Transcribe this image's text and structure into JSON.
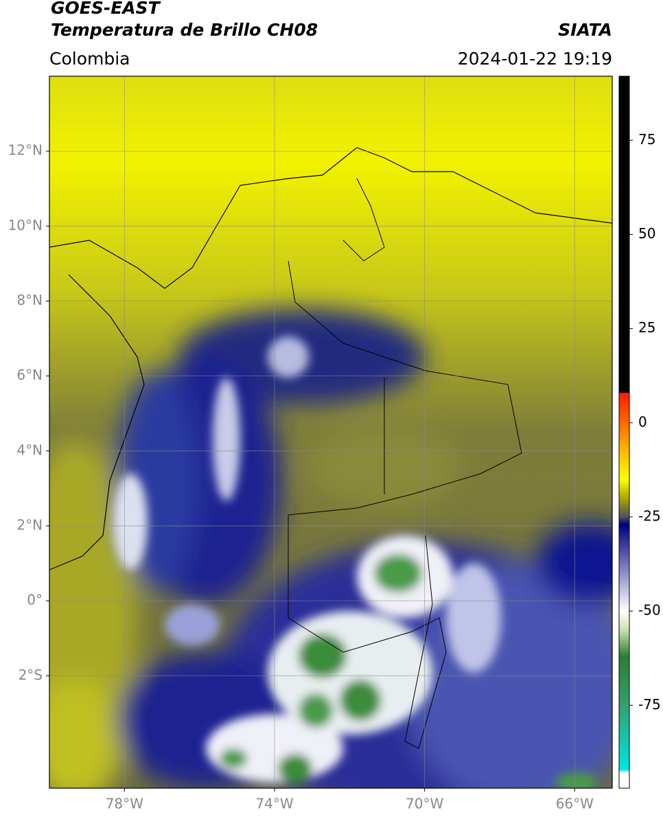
{
  "header": {
    "title_line1": "GOES-EAST",
    "title_line2": "Temperatura de Brillo CH08",
    "subtitle": "Colombia",
    "source": "SIATA",
    "datetime": "2024-01-22 19:19"
  },
  "chart_data": {
    "type": "map",
    "xlim": [
      -80,
      -65
    ],
    "ylim": [
      -5,
      14
    ],
    "xticks": [
      {
        "value": -78,
        "label": "78°W"
      },
      {
        "value": -74,
        "label": "74°W"
      },
      {
        "value": -70,
        "label": "70°W"
      },
      {
        "value": -66,
        "label": "66°W"
      }
    ],
    "yticks": [
      {
        "value": 12,
        "label": "12°N"
      },
      {
        "value": 10,
        "label": "10°N"
      },
      {
        "value": 8,
        "label": "8°N"
      },
      {
        "value": 6,
        "label": "6°N"
      },
      {
        "value": 4,
        "label": "4°N"
      },
      {
        "value": 2,
        "label": "2°N"
      },
      {
        "value": 0,
        "label": "0°"
      },
      {
        "value": -2,
        "label": "2°S"
      }
    ],
    "grid": true,
    "colorbar": {
      "lim": [
        -97,
        92
      ],
      "ticks": [
        75,
        50,
        25,
        0,
        -25,
        -50,
        -75
      ],
      "stops": [
        {
          "value": 92,
          "color": "#000000"
        },
        {
          "value": 8,
          "color": "#000000"
        },
        {
          "value": 8,
          "color": "#ff1a00"
        },
        {
          "value": 0,
          "color": "#ff6a00"
        },
        {
          "value": -10,
          "color": "#ffd000"
        },
        {
          "value": -15,
          "color": "#ffff00"
        },
        {
          "value": -20,
          "color": "#a8a800"
        },
        {
          "value": -25,
          "color": "#505060"
        },
        {
          "value": -27,
          "color": "#000080"
        },
        {
          "value": -50,
          "color": "#ffffff"
        },
        {
          "value": -55,
          "color": "#c8e0b0"
        },
        {
          "value": -62,
          "color": "#2e7d32"
        },
        {
          "value": -75,
          "color": "#33a070"
        },
        {
          "value": -92,
          "color": "#00e5e5"
        },
        {
          "value": -93,
          "color": "#ffffff"
        },
        {
          "value": -97,
          "color": "#ffffff"
        }
      ]
    }
  }
}
